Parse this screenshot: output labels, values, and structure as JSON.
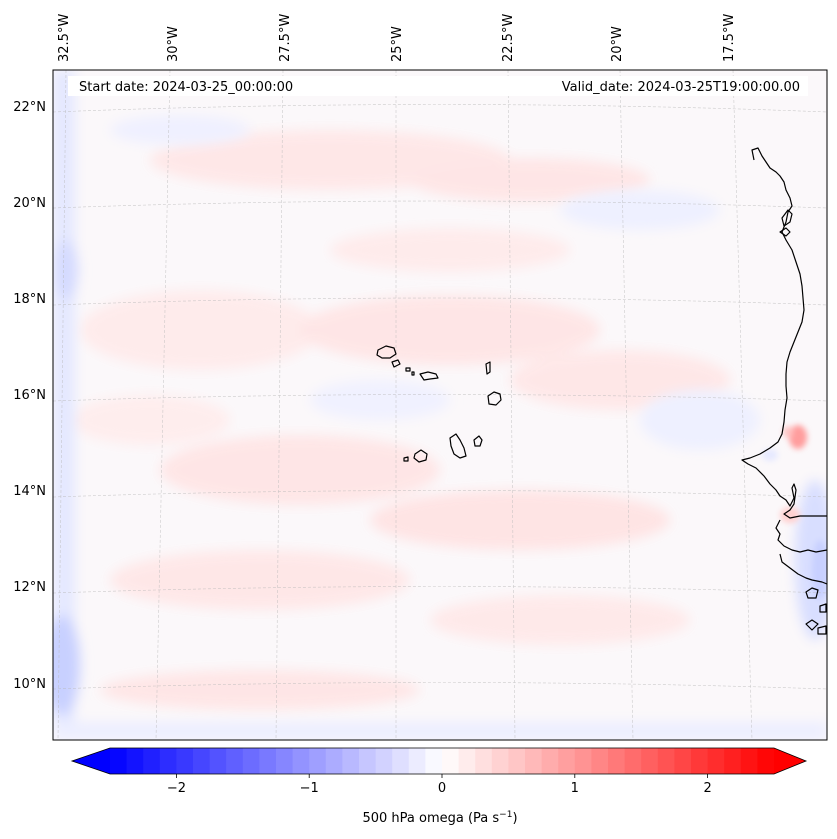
{
  "map": {
    "start_label": "Start date: 2024-03-25_00:00:00",
    "valid_label": "Valid_date: 2024-03-25T19:00:00.00",
    "lon_labels": [
      "32.5°W",
      "30°W",
      "27.5°W",
      "25°W",
      "22.5°W",
      "20°W",
      "17.5°W"
    ],
    "lat_labels": [
      "22°N",
      "20°N",
      "18°N",
      "16°N",
      "14°N",
      "12°N",
      "10°N"
    ],
    "gridlines": true,
    "coastline_color": "#000000"
  },
  "colorbar": {
    "label_main": "500 hPa omega (Pa s",
    "label_exp": "−1",
    "label_close": ")",
    "tick_labels": [
      "−2",
      "−1",
      "0",
      "1",
      "2"
    ],
    "range": [
      -2.5,
      2.5
    ],
    "colormap": "bwr",
    "extend": "both",
    "low_color": "#0000ff",
    "mid_color": "#ffffff",
    "high_color": "#ff0000"
  }
}
